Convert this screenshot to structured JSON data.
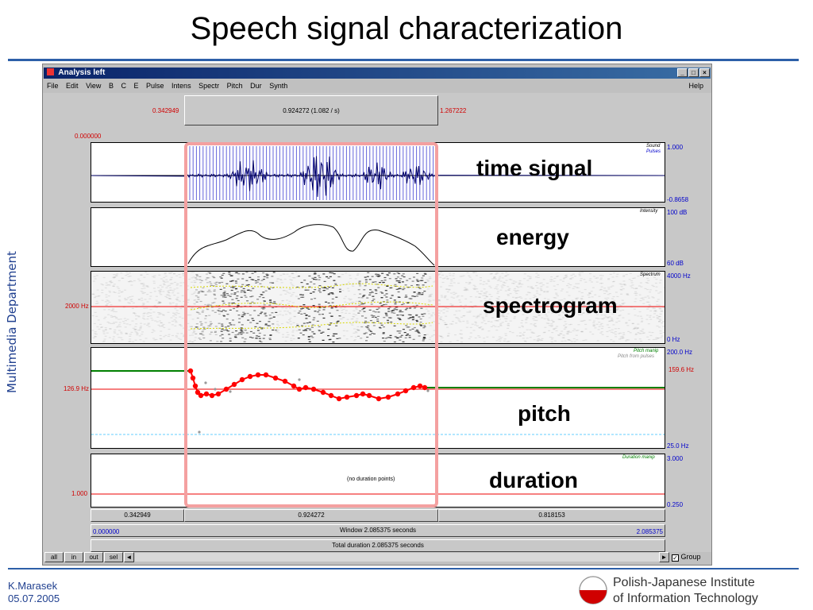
{
  "slide": {
    "title": "Speech signal characterization",
    "side_text": "Multimedia Department",
    "author": "K.Marasek",
    "date": "05.07.2005",
    "institute_line1": "Polish-Japanese Institute",
    "institute_line2": "of Information Technology"
  },
  "window": {
    "title": "Analysis left",
    "buttons": {
      "minimize": "_",
      "maximize": "□",
      "close": "×"
    },
    "menu": [
      "File",
      "Edit",
      "View",
      "B",
      "C",
      "E",
      "Pulse",
      "Intens",
      "Spectr",
      "Pitch",
      "Dur",
      "Synth"
    ],
    "help": "Help"
  },
  "analysis": {
    "sel_start": "0.342949",
    "sel_duration": "0.924272 (1.082 / s)",
    "sel_end": "1.267222",
    "time_zero": "0.000000",
    "sound": {
      "label": "Sound",
      "sublabel": "Pulses",
      "max": "1.000",
      "min": "-0.8658"
    },
    "intensity": {
      "label": "Intensity",
      "max": "100 dB",
      "min": "60 dB"
    },
    "spectrum": {
      "label": "Spectrum",
      "max": "4000 Hz",
      "min": "0 Hz",
      "cursor": "2000 Hz"
    },
    "pitch": {
      "label": "Pitch manip",
      "sublabel": "Pitch from pulses",
      "max": "200.0 Hz",
      "min": "25.0 Hz",
      "cursor_left": "126.9 Hz",
      "cursor_right": "159.6 Hz"
    },
    "duration": {
      "label": "Duration manip",
      "max": "3.000",
      "min": "0.250",
      "cursor": "1.000",
      "empty": "(no duration points)"
    },
    "segments": [
      "0.342949",
      "0.924272",
      "0.818153"
    ],
    "window_start": "0.000000",
    "window_label": "Window 2.085375 seconds",
    "window_end": "2.085375",
    "total": "Total duration 2.085375 seconds"
  },
  "scroll": {
    "all": "all",
    "in": "in",
    "out": "out",
    "sel": "sel",
    "left": "◄",
    "right": "►",
    "group": "Group",
    "group_check": "✓"
  },
  "annotations": {
    "time_signal": "time signal",
    "energy": "energy",
    "spectrogram": "spectrogram",
    "pitch": "pitch",
    "duration": "duration"
  },
  "colors": {
    "accent": "#2d5fa8",
    "selection": "#f4a0a0",
    "pitch_points": "#ff0000"
  }
}
